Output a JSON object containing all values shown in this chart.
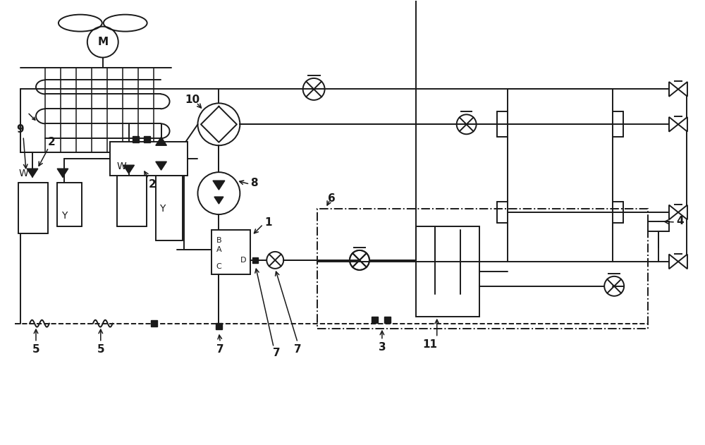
{
  "bg": "#ffffff",
  "lc": "#1a1a1a",
  "lw": 1.4,
  "fig_w": 10.0,
  "fig_h": 6.31,
  "xlim": [
    0,
    10
  ],
  "ylim": [
    0,
    6.31
  ]
}
